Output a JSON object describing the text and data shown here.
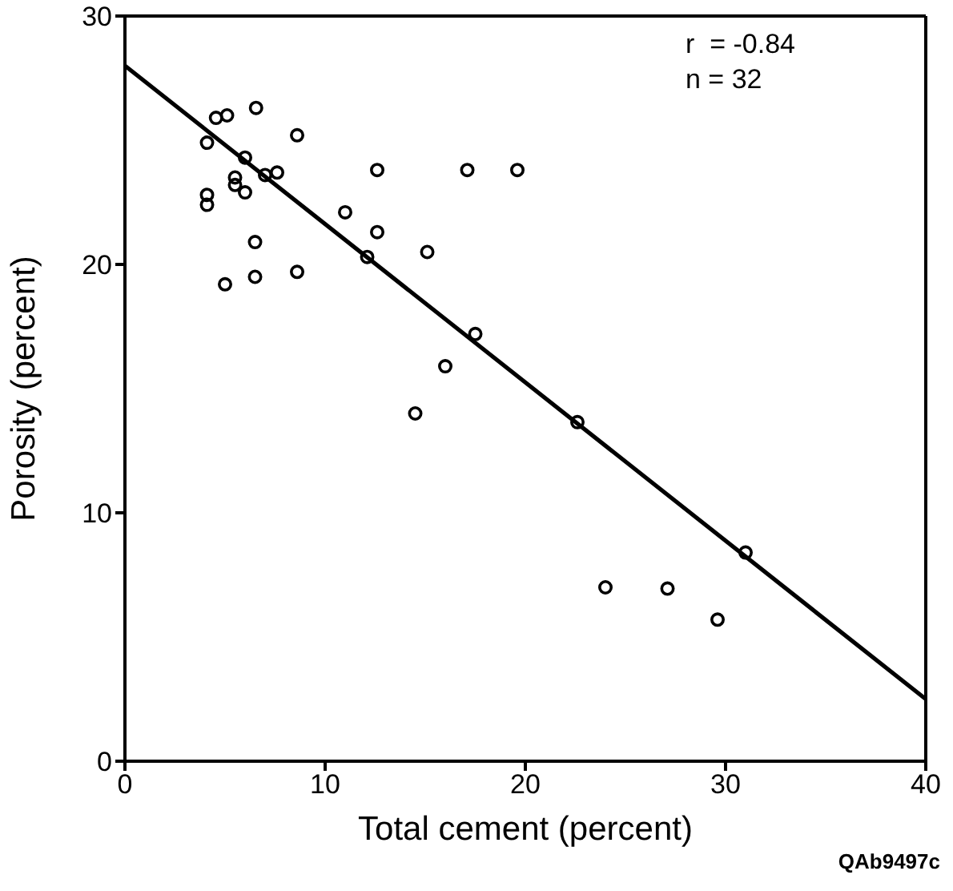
{
  "chart_data": {
    "type": "scatter",
    "xlabel": "Total cement (percent)",
    "ylabel": "Porosity (percent)",
    "xlim": [
      0,
      40
    ],
    "xticks": [
      0,
      10,
      20,
      30,
      40
    ],
    "ylim": [
      0,
      30
    ],
    "yticks": [
      0,
      10,
      20,
      30
    ],
    "series": [
      {
        "color": "#000000",
        "marker": "circle",
        "x": [
          4.55,
          5.1,
          6.55,
          8.6,
          4.1,
          6.0,
          5.5,
          5.5,
          6.0,
          7.0,
          7.6,
          4.1,
          4.1,
          12.6,
          17.1,
          11.0,
          12.6,
          6.5,
          12.1,
          15.1,
          5.0,
          6.5,
          8.6,
          19.6,
          17.5,
          16.0,
          22.6,
          31.0,
          24.0,
          27.1,
          29.6,
          14.5
        ],
        "values": [
          25.9,
          26.0,
          26.3,
          25.2,
          24.9,
          24.3,
          23.5,
          23.2,
          22.9,
          23.6,
          23.7,
          22.8,
          22.4,
          23.8,
          23.8,
          22.1,
          21.3,
          20.9,
          20.3,
          20.5,
          19.2,
          19.5,
          19.7,
          23.8,
          17.2,
          15.9,
          13.65,
          8.4,
          7.0,
          6.95,
          5.7,
          14.0
        ]
      },
      {
        "type": "line",
        "color": "#000000",
        "marker": "none",
        "line_style": "solid",
        "x": [
          0,
          40
        ],
        "values": [
          28,
          2.5
        ]
      }
    ],
    "annotations": [
      "r  = -0.84",
      "n = 32",
      "QAb9497c"
    ]
  }
}
